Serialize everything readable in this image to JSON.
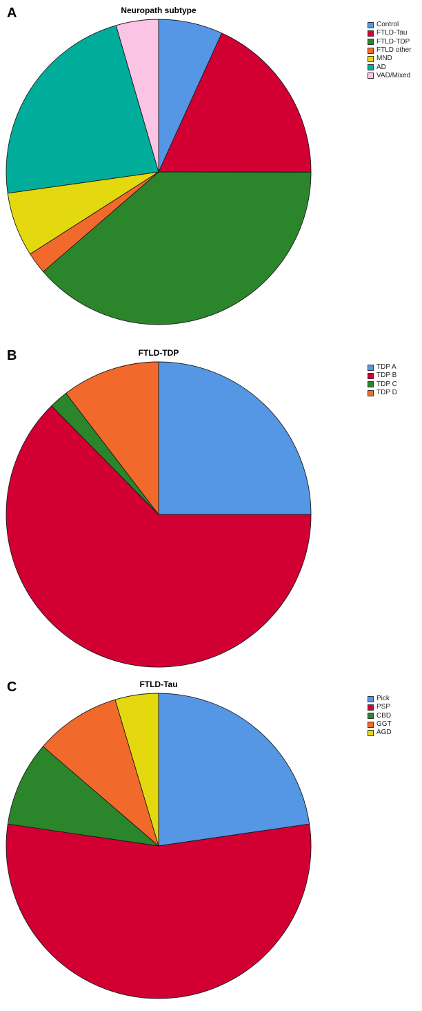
{
  "chart_data": [
    {
      "type": "pie",
      "panel_label": "A",
      "title": "Neuropath subtype",
      "legend_position": "top-right",
      "slices": [
        {
          "name": "Control",
          "value": 6.8,
          "color": "#5597e4"
        },
        {
          "name": "FTLD-Tau",
          "value": 18.2,
          "color": "#d20032"
        },
        {
          "name": "FTLD-TDP",
          "value": 38.6,
          "color": "#2b862b"
        },
        {
          "name": "FTLD other",
          "value": 2.3,
          "color": "#f2692c"
        },
        {
          "name": "MND",
          "value": 6.8,
          "color": "#e4d90f"
        },
        {
          "name": "AD",
          "value": 22.7,
          "color": "#00ad9a"
        },
        {
          "name": "VAD/Mixed",
          "value": 4.5,
          "color": "#fcc4e4"
        }
      ]
    },
    {
      "type": "pie",
      "panel_label": "B",
      "title": "FTLD-TDP",
      "legend_position": "top-right",
      "slices": [
        {
          "name": "TDP A",
          "value": 25.0,
          "color": "#5597e4"
        },
        {
          "name": "TDP B",
          "value": 62.6,
          "color": "#d20032"
        },
        {
          "name": "TDP C",
          "value": 2.0,
          "color": "#2b862b"
        },
        {
          "name": "TDP D",
          "value": 10.4,
          "color": "#f2692c"
        }
      ]
    },
    {
      "type": "pie",
      "panel_label": "C",
      "title": "FTLD-Tau",
      "legend_position": "top-right",
      "slices": [
        {
          "name": "Pick",
          "value": 22.7,
          "color": "#5597e4"
        },
        {
          "name": "PSP",
          "value": 54.6,
          "color": "#d20032"
        },
        {
          "name": "CBD",
          "value": 9.0,
          "color": "#2b862b"
        },
        {
          "name": "GGT",
          "value": 9.1,
          "color": "#f2692c"
        },
        {
          "name": "AGD",
          "value": 4.6,
          "color": "#e4d90f"
        }
      ]
    }
  ]
}
